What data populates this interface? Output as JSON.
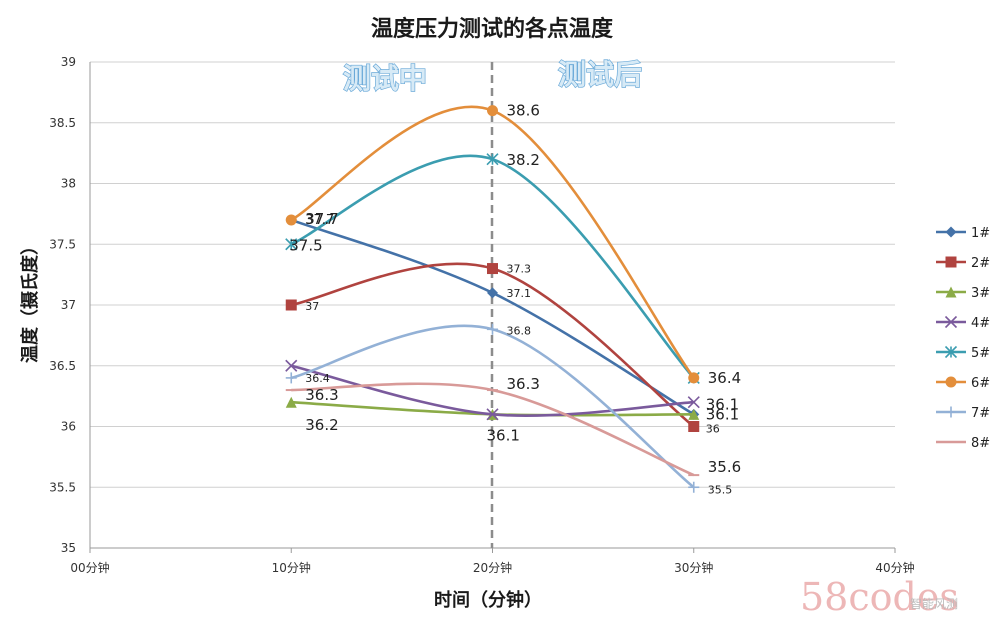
{
  "chart_data": {
    "type": "line",
    "title": "温度压力测试的各点温度",
    "xlabel": "时间（分钟）",
    "ylabel": "温度（摄氏度）",
    "categories": [
      "00分钟",
      "10分钟",
      "20分钟",
      "30分钟",
      "40分钟"
    ],
    "y_ticks": [
      "35",
      "35.5",
      "36",
      "36.5",
      "37",
      "37.5",
      "38",
      "38.5",
      "39"
    ],
    "ylim": [
      35,
      39
    ],
    "grid": "horizontal",
    "legend": "right",
    "annotations": {
      "during_test": "测试中",
      "after_test": "测试后"
    },
    "series": [
      {
        "name": "1#",
        "color": "#4472a8",
        "marker": "diamond",
        "values": [
          null,
          37.7,
          37.1,
          36.1,
          null
        ],
        "labels": [
          "",
          "37.7",
          "37.1",
          "36.1",
          ""
        ]
      },
      {
        "name": "2#",
        "color": "#b0433f",
        "marker": "square",
        "values": [
          null,
          37.0,
          37.3,
          36.0,
          null
        ],
        "labels": [
          "",
          "37",
          "37.3",
          "36",
          ""
        ]
      },
      {
        "name": "3#",
        "color": "#8bab47",
        "marker": "triangle",
        "values": [
          null,
          36.2,
          36.1,
          36.1,
          null
        ],
        "labels": [
          "",
          "36.2",
          "36.1",
          "36.1",
          ""
        ]
      },
      {
        "name": "4#",
        "color": "#7a5a9c",
        "marker": "x",
        "values": [
          null,
          36.5,
          36.1,
          36.2,
          null
        ],
        "labels": [
          "",
          "",
          "",
          "",
          ""
        ]
      },
      {
        "name": "5#",
        "color": "#3b9db0",
        "marker": "star",
        "values": [
          null,
          37.5,
          38.2,
          36.4,
          null
        ],
        "labels": [
          "",
          "37.5",
          "38.2",
          "",
          ""
        ]
      },
      {
        "name": "6#",
        "color": "#e38e3b",
        "marker": "circle",
        "values": [
          null,
          37.7,
          38.6,
          36.4,
          null
        ],
        "labels": [
          "",
          "37.7",
          "38.6",
          "36.4",
          ""
        ]
      },
      {
        "name": "7#",
        "color": "#93b1d6",
        "marker": "plus",
        "values": [
          null,
          36.4,
          36.8,
          35.5,
          null
        ],
        "labels": [
          "",
          "36.4",
          "36.8",
          "35.5",
          ""
        ]
      },
      {
        "name": "8#",
        "color": "#d89a98",
        "marker": "dash",
        "values": [
          null,
          36.3,
          36.3,
          35.6,
          null
        ],
        "labels": [
          "",
          "36.3",
          "36.3",
          "35.6",
          ""
        ]
      }
    ]
  },
  "watermark": {
    "brand": "58codes",
    "sub": "智能风测"
  }
}
